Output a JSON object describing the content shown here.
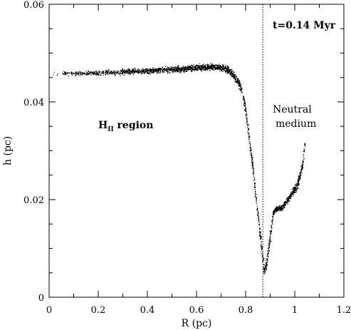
{
  "chart_data": {
    "type": "scatter",
    "title": "",
    "xlabel": "R (pc)",
    "ylabel": "h (pc)",
    "xlim": [
      0,
      1.2
    ],
    "ylim": [
      0,
      0.06
    ],
    "x_ticks": [
      0,
      0.2,
      0.4,
      0.6,
      0.8,
      1,
      1.2
    ],
    "x_tick_labels": [
      "0",
      "0.2",
      "0.4",
      "0.6",
      "0.8",
      "1",
      "1.2"
    ],
    "y_ticks": [
      0,
      0.02,
      0.04,
      0.06
    ],
    "y_tick_labels": [
      "0",
      "0.02",
      "0.04",
      "0.06"
    ],
    "vline_x": 0.87,
    "annotations": {
      "time": "t=0.14 Myr",
      "region_main": "H",
      "region_sub": "II",
      "region_rest": " region",
      "neutral_line1": "Neutral",
      "neutral_line2": "medium"
    },
    "series": [
      {
        "values_x": [
          0.0,
          0.05,
          0.1,
          0.15,
          0.2,
          0.25,
          0.3,
          0.35,
          0.4,
          0.45,
          0.5,
          0.55,
          0.6,
          0.65,
          0.7,
          0.73,
          0.75,
          0.77,
          0.78,
          0.79,
          0.8,
          0.81,
          0.82,
          0.83,
          0.84,
          0.85,
          0.86,
          0.87,
          0.875,
          0.88,
          0.89,
          0.9,
          0.91,
          0.92,
          0.93,
          0.95,
          0.97,
          0.99,
          1.01,
          1.03,
          1.04
        ],
        "values_y": [
          0.0458,
          0.0459,
          0.0459,
          0.046,
          0.046,
          0.0461,
          0.0462,
          0.0463,
          0.0464,
          0.0466,
          0.0467,
          0.0468,
          0.047,
          0.0472,
          0.0471,
          0.0465,
          0.0455,
          0.044,
          0.043,
          0.041,
          0.038,
          0.034,
          0.03,
          0.026,
          0.021,
          0.0165,
          0.012,
          0.0075,
          0.0055,
          0.006,
          0.009,
          0.0125,
          0.017,
          0.018,
          0.0182,
          0.0185,
          0.02,
          0.0215,
          0.023,
          0.027,
          0.0315
        ]
      }
    ],
    "colors": {
      "points": "#000000",
      "axes": "#000000",
      "background": "#ffffff"
    }
  }
}
